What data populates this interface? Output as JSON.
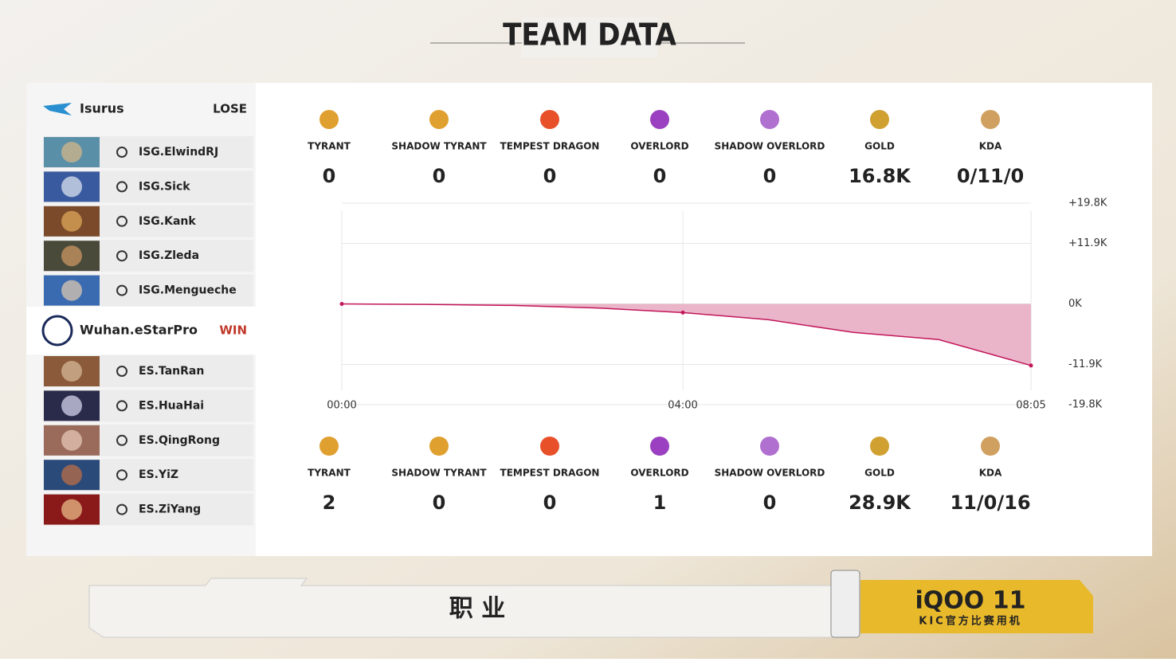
{
  "header": {
    "title": "TEAM DATA"
  },
  "teams": [
    {
      "name": "Isurus",
      "result": "LOSE",
      "players": [
        "ISG.ElwindRJ",
        "ISG.Sick",
        "ISG.Kank",
        "ISG.Zleda",
        "ISG.Mengueche"
      ],
      "stats": [
        {
          "label": "TYRANT",
          "value": 0
        },
        {
          "label": "SHADOW TYRANT",
          "value": 0
        },
        {
          "label": "TEMPEST DRAGON",
          "value": 0
        },
        {
          "label": "OVERLORD",
          "value": 0
        },
        {
          "label": "SHADOW OVERLORD",
          "value": 0
        },
        {
          "label": "GOLD",
          "value": "16.8K"
        },
        {
          "label": "KDA",
          "value": "0/11/0"
        }
      ]
    },
    {
      "name": "Wuhan.eStarPro",
      "result": "WIN",
      "players": [
        "ES.TanRan",
        "ES.HuaHai",
        "ES.QingRong",
        "ES.YiZ",
        "ES.ZiYang"
      ],
      "stats": [
        {
          "label": "TYRANT",
          "value": 2
        },
        {
          "label": "SHADOW TYRANT",
          "value": 0
        },
        {
          "label": "TEMPEST DRAGON",
          "value": 0
        },
        {
          "label": "OVERLORD",
          "value": 1
        },
        {
          "label": "SHADOW OVERLORD",
          "value": 0
        },
        {
          "label": "GOLD",
          "value": "28.9K"
        },
        {
          "label": "KDA",
          "value": "11/0/16"
        }
      ]
    }
  ],
  "chart_data": {
    "type": "area",
    "x": [
      0,
      60,
      120,
      180,
      240,
      300,
      360,
      420,
      485
    ],
    "values": [
      0,
      -100,
      -300,
      -800,
      -1700,
      -3100,
      -5600,
      -7000,
      -12100
    ],
    "color": "#c2185b",
    "fill_color": "#e8a8c0",
    "xlim": [
      0,
      485
    ],
    "xticks": [
      {
        "value": 0,
        "label": "00:00"
      },
      {
        "value": 240,
        "label": "04:00"
      },
      {
        "value": 485,
        "label": "08:05"
      }
    ],
    "ylim": [
      -19800,
      19800
    ],
    "yticks": [
      {
        "value": 19800,
        "label": "+19.8K"
      },
      {
        "value": 11900,
        "label": "+11.9K"
      },
      {
        "value": 0,
        "label": "0K"
      },
      {
        "value": -11900,
        "label": "-11.9K"
      },
      {
        "value": -19800,
        "label": "-19.8K"
      }
    ]
  },
  "banner": {
    "text": "职 业",
    "brand": "iQOO 11",
    "slogan": "KIC官方比赛用机"
  }
}
